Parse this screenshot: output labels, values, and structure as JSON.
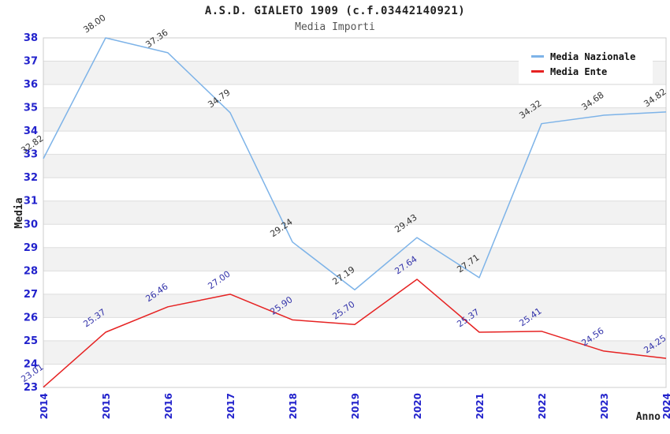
{
  "header": {
    "title": "A.S.D. GIALETO 1909 (c.f.03442140921)",
    "subtitle": "Media Importi"
  },
  "chart_data": {
    "type": "line",
    "x": [
      2014,
      2015,
      2016,
      2017,
      2018,
      2019,
      2020,
      2021,
      2022,
      2023,
      2024
    ],
    "xlabel": "Anno",
    "ylabel": "Media",
    "ylim": [
      23,
      38
    ],
    "y_tick_step": 1,
    "grid": "horizontal gridlines with alternating light-gray bands",
    "legend_position": "top-right",
    "x_tick_rotation_deg": 90,
    "data_label_rotation_deg": 35,
    "series": [
      {
        "name": "Media Nazionale",
        "color": "#7DB3E8",
        "label_color": "#333333",
        "values": [
          32.82,
          38.0,
          37.36,
          34.79,
          29.24,
          27.19,
          29.43,
          27.71,
          34.32,
          34.68,
          34.82
        ]
      },
      {
        "name": "Media Ente",
        "color": "#E62222",
        "label_color": "#3333AA",
        "values": [
          23.01,
          25.37,
          26.46,
          27.0,
          25.9,
          25.7,
          27.64,
          25.37,
          25.41,
          24.56,
          24.25
        ]
      }
    ]
  },
  "colors": {
    "tick_label": "#2222CC",
    "band": "#F2F2F2",
    "gridline": "#DDDDDD",
    "plot_border": "#CCCCCC",
    "background": "#FFFFFF"
  }
}
